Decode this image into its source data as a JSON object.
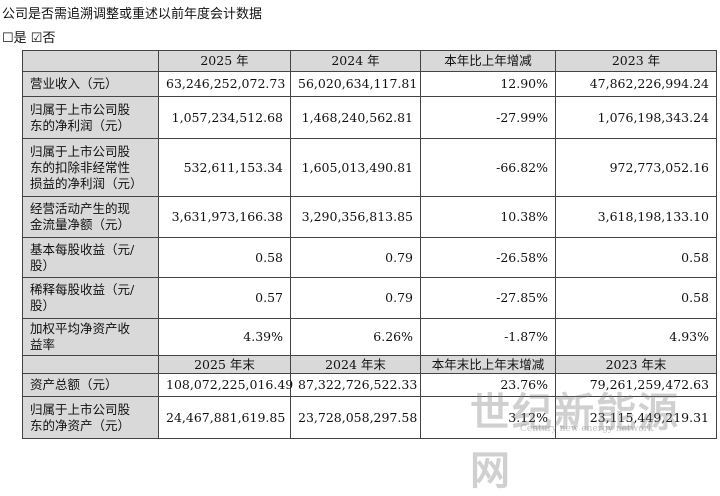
{
  "header": {
    "title": "公司是否需追溯调整或重述以前年度会计数据",
    "options": [
      "☐是",
      "☑否"
    ]
  },
  "table": {
    "head": [
      "",
      "2025 年",
      "2024 年",
      "本年比上年增减",
      "2023 年"
    ],
    "rows": [
      [
        "营业收入（元）",
        "63,246,252,072.73",
        "56,020,634,117.81",
        "12.90%",
        "47,862,226,994.24"
      ],
      [
        "归属于上市公司股东的净利润（元）",
        "1,057,234,512.68",
        "1,468,240,562.81",
        "-27.99%",
        "1,076,198,343.24"
      ],
      [
        "归属于上市公司股东的扣除非经常性损益的净利润（元）",
        "532,611,153.34",
        "1,605,013,490.81",
        "-66.82%",
        "972,773,052.16"
      ],
      [
        "经营活动产生的现金流量净额（元）",
        "3,631,973,166.38",
        "3,290,356,813.85",
        "10.38%",
        "3,618,198,133.10"
      ],
      [
        "基本每股收益（元/股）",
        "0.58",
        "0.79",
        "-26.58%",
        "0.58"
      ],
      [
        "稀释每股收益（元/股）",
        "0.57",
        "0.79",
        "-27.85%",
        "0.58"
      ],
      [
        "加权平均净资产收益率",
        "4.39%",
        "6.26%",
        "-1.87%",
        "4.93%"
      ]
    ],
    "head2": [
      "",
      "2025 年末",
      "2024 年末",
      "本年末比上年末增减",
      "2023 年末"
    ],
    "rows2": [
      [
        "资产总额（元）",
        "108,072,225,016.49",
        "87,322,726,522.33",
        "23.76%",
        "79,261,259,472.63"
      ],
      [
        "归属于上市公司股东的净资产（元）",
        "24,467,881,619.85",
        "23,728,058,297.58",
        "3.12%",
        "23,115,449,219.31"
      ]
    ]
  },
  "watermark": {
    "title": "世纪新能源网",
    "subtitle": "Century new energy network"
  }
}
